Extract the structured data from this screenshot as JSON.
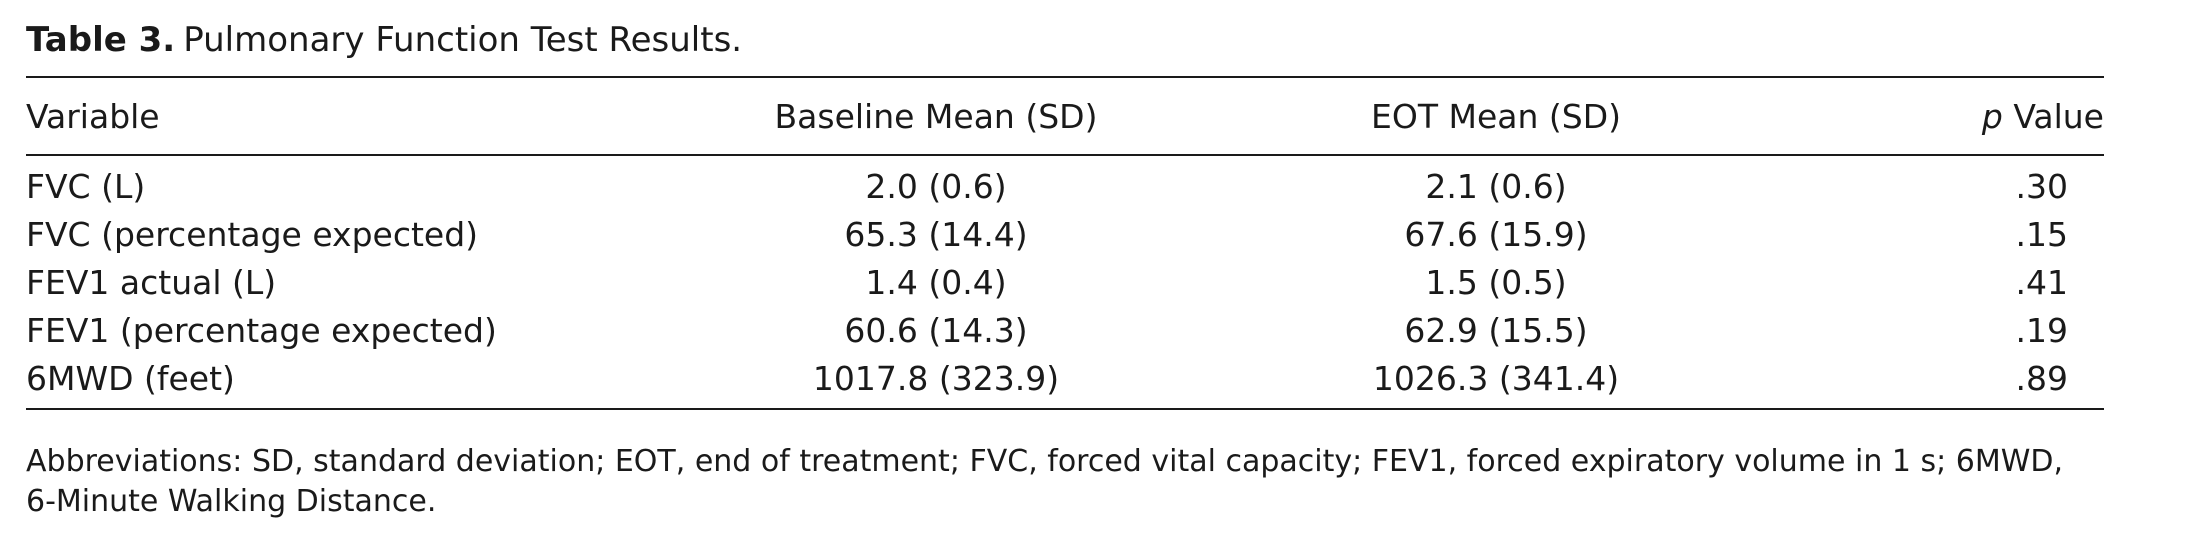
{
  "caption": {
    "label": "Table 3.",
    "title": "Pulmonary Function Test Results."
  },
  "table": {
    "headers": {
      "variable": "Variable",
      "baseline": "Baseline Mean (SD)",
      "eot": "EOT Mean (SD)",
      "p_italic": "p",
      "p_rest": " Value"
    },
    "rows": [
      {
        "variable": "FVC (L)",
        "baseline": "2.0 (0.6)",
        "eot": "2.1 (0.6)",
        "p": ".30"
      },
      {
        "variable": "FVC (percentage expected)",
        "baseline": "65.3 (14.4)",
        "eot": "67.6 (15.9)",
        "p": ".15"
      },
      {
        "variable": "FEV1 actual (L)",
        "baseline": "1.4 (0.4)",
        "eot": "1.5 (0.5)",
        "p": ".41"
      },
      {
        "variable": "FEV1 (percentage expected)",
        "baseline": "60.6 (14.3)",
        "eot": "62.9 (15.5)",
        "p": ".19"
      },
      {
        "variable": "6MWD (feet)",
        "baseline": "1017.8 (323.9)",
        "eot": "1026.3 (341.4)",
        "p": ".89"
      }
    ]
  },
  "footnote": "Abbreviations: SD, standard deviation; EOT, end of treatment; FVC, forced vital capacity; FEV1, forced expiratory volume in 1 s; 6MWD, 6-Minute Walking Distance."
}
